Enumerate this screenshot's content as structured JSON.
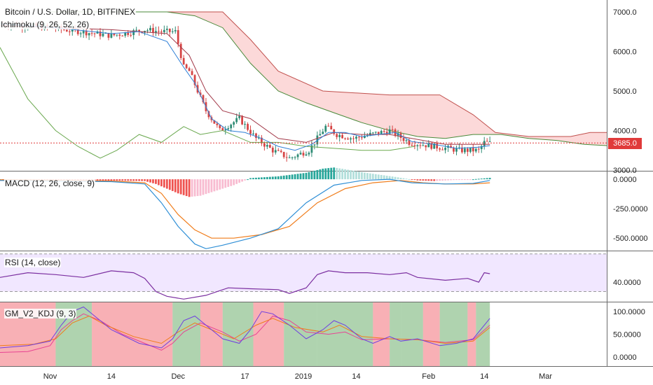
{
  "chart_data": [
    {
      "type": "candlestick",
      "title": "Bitcoin / U.S. Dollar, 1D, BITFINEX",
      "indicator": "Ichimoku (9, 26, 52, 26)",
      "ylim": [
        3000,
        7300
      ],
      "yticks": [
        "7000.0",
        "6000.0",
        "5000.0",
        "4000.0",
        "3000.0"
      ],
      "last_price": "3685.0",
      "price_segments": [
        {
          "from": 0,
          "to": 6700
        },
        {
          "from": 18,
          "to": 6600
        },
        {
          "from": 40,
          "to": 6400
        },
        {
          "from": 52,
          "to": 6550
        },
        {
          "from": 58,
          "to": 6500
        },
        {
          "from": 63,
          "to": 6500
        },
        {
          "from": 66,
          "to": 5600
        },
        {
          "from": 68,
          "to": 5500
        },
        {
          "from": 74,
          "to": 4500
        },
        {
          "from": 79,
          "to": 4000
        },
        {
          "from": 86,
          "to": 4300
        },
        {
          "from": 92,
          "to": 3800
        },
        {
          "from": 98,
          "to": 3500
        },
        {
          "from": 104,
          "to": 3300
        },
        {
          "from": 111,
          "to": 3500
        },
        {
          "from": 117,
          "to": 4100
        },
        {
          "from": 121,
          "to": 3900
        },
        {
          "from": 127,
          "to": 3800
        },
        {
          "from": 133,
          "to": 3900
        },
        {
          "from": 140,
          "to": 4000
        },
        {
          "from": 147,
          "to": 3700
        },
        {
          "from": 156,
          "to": 3600
        },
        {
          "from": 165,
          "to": 3500
        },
        {
          "from": 172,
          "to": 3500
        },
        {
          "from": 174,
          "to": 3700
        },
        {
          "from": 176,
          "to": 3685
        }
      ],
      "tenkan": [
        [
          0,
          6700
        ],
        [
          20,
          6600
        ],
        [
          40,
          6450
        ],
        [
          50,
          6500
        ],
        [
          60,
          6250
        ],
        [
          66,
          5600
        ],
        [
          70,
          5200
        ],
        [
          76,
          4300
        ],
        [
          82,
          4000
        ],
        [
          88,
          3950
        ],
        [
          94,
          3800
        ],
        [
          100,
          3600
        ],
        [
          106,
          3500
        ],
        [
          112,
          3650
        ],
        [
          118,
          3950
        ],
        [
          124,
          3950
        ],
        [
          130,
          3850
        ],
        [
          136,
          3900
        ],
        [
          142,
          3950
        ],
        [
          148,
          3720
        ],
        [
          156,
          3650
        ],
        [
          164,
          3550
        ],
        [
          172,
          3580
        ],
        [
          176,
          3620
        ]
      ],
      "kijun": [
        [
          0,
          6650
        ],
        [
          40,
          6550
        ],
        [
          60,
          6450
        ],
        [
          68,
          5900
        ],
        [
          74,
          5000
        ],
        [
          80,
          4500
        ],
        [
          90,
          4300
        ],
        [
          100,
          3800
        ],
        [
          110,
          3700
        ],
        [
          120,
          3950
        ],
        [
          130,
          3900
        ],
        [
          140,
          3900
        ],
        [
          148,
          3800
        ],
        [
          160,
          3650
        ],
        [
          176,
          3650
        ]
      ],
      "chikou": [
        [
          0,
          6100
        ],
        [
          10,
          4800
        ],
        [
          20,
          4000
        ],
        [
          28,
          3600
        ],
        [
          36,
          3300
        ],
        [
          42,
          3500
        ],
        [
          50,
          3900
        ],
        [
          58,
          3700
        ],
        [
          66,
          4100
        ],
        [
          72,
          3900
        ],
        [
          80,
          4000
        ],
        [
          90,
          3700
        ],
        [
          100,
          3700
        ],
        [
          110,
          3600
        ],
        [
          120,
          3550
        ],
        [
          130,
          3500
        ],
        [
          140,
          3500
        ],
        [
          149,
          3600
        ]
      ],
      "span_a": [
        [
          18,
          7000
        ],
        [
          34,
          7000
        ],
        [
          40,
          7000
        ],
        [
          52,
          7000
        ],
        [
          60,
          7000
        ],
        [
          70,
          6900
        ],
        [
          80,
          6600
        ],
        [
          90,
          5700
        ],
        [
          100,
          5000
        ],
        [
          110,
          4700
        ],
        [
          120,
          4450
        ],
        [
          130,
          4200
        ],
        [
          140,
          4000
        ],
        [
          150,
          3850
        ],
        [
          160,
          3800
        ],
        [
          170,
          3900
        ],
        [
          180,
          3900
        ],
        [
          190,
          3800
        ],
        [
          200,
          3750
        ],
        [
          210,
          3650
        ],
        [
          218,
          3620
        ]
      ],
      "span_b": [
        [
          18,
          7000
        ],
        [
          60,
          7000
        ],
        [
          80,
          7000
        ],
        [
          90,
          6300
        ],
        [
          100,
          5500
        ],
        [
          116,
          5000
        ],
        [
          140,
          4900
        ],
        [
          158,
          4900
        ],
        [
          170,
          4400
        ],
        [
          178,
          3950
        ],
        [
          190,
          3850
        ],
        [
          205,
          3850
        ],
        [
          212,
          3950
        ],
        [
          218,
          3950
        ]
      ],
      "x_ticks": [
        "Nov",
        "14",
        "Dec",
        "17",
        "2019",
        "14",
        "Feb",
        "14",
        "Mar"
      ]
    },
    {
      "type": "bar",
      "title": "MACD (12, 26, close, 9)",
      "ylim": [
        -600,
        60
      ],
      "yticks": [
        "0.0000",
        "-250.0000",
        "-500.0000"
      ],
      "histogram": [
        [
          0,
          0
        ],
        [
          15,
          -5
        ],
        [
          35,
          -10
        ],
        [
          52,
          -15
        ],
        [
          56,
          -40
        ],
        [
          60,
          -80
        ],
        [
          64,
          -120
        ],
        [
          68,
          -150
        ],
        [
          72,
          -140
        ],
        [
          76,
          -110
        ],
        [
          80,
          -80
        ],
        [
          84,
          -50
        ],
        [
          90,
          10
        ],
        [
          100,
          25
        ],
        [
          110,
          55
        ],
        [
          116,
          90
        ],
        [
          120,
          100
        ],
        [
          124,
          85
        ],
        [
          130,
          60
        ],
        [
          136,
          40
        ],
        [
          142,
          20
        ],
        [
          146,
          5
        ],
        [
          150,
          -10
        ],
        [
          156,
          -15
        ],
        [
          164,
          -5
        ],
        [
          170,
          0
        ],
        [
          176,
          12
        ]
      ],
      "macd": [
        [
          0,
          -10
        ],
        [
          40,
          -20
        ],
        [
          52,
          -40
        ],
        [
          58,
          -200
        ],
        [
          64,
          -400
        ],
        [
          70,
          -550
        ],
        [
          74,
          -590
        ],
        [
          80,
          -560
        ],
        [
          90,
          -500
        ],
        [
          100,
          -420
        ],
        [
          110,
          -200
        ],
        [
          120,
          -50
        ],
        [
          130,
          -10
        ],
        [
          140,
          0
        ],
        [
          148,
          -30
        ],
        [
          160,
          -40
        ],
        [
          170,
          -35
        ],
        [
          176,
          -10
        ]
      ],
      "signal": [
        [
          0,
          -5
        ],
        [
          40,
          -15
        ],
        [
          52,
          -30
        ],
        [
          58,
          -120
        ],
        [
          64,
          -300
        ],
        [
          70,
          -430
        ],
        [
          76,
          -500
        ],
        [
          84,
          -500
        ],
        [
          94,
          -470
        ],
        [
          104,
          -400
        ],
        [
          114,
          -200
        ],
        [
          124,
          -80
        ],
        [
          134,
          -30
        ],
        [
          144,
          -10
        ],
        [
          152,
          -30
        ],
        [
          160,
          -40
        ],
        [
          170,
          -40
        ],
        [
          176,
          -30
        ]
      ]
    },
    {
      "type": "line",
      "title": "RSI (14, close)",
      "ylim": [
        20,
        72
      ],
      "yticks": [
        "40.0000"
      ],
      "values": [
        [
          0,
          45
        ],
        [
          10,
          50
        ],
        [
          20,
          48
        ],
        [
          30,
          45
        ],
        [
          40,
          52
        ],
        [
          48,
          50
        ],
        [
          52,
          44
        ],
        [
          56,
          30
        ],
        [
          60,
          25
        ],
        [
          66,
          22
        ],
        [
          74,
          26
        ],
        [
          82,
          34
        ],
        [
          90,
          33
        ],
        [
          100,
          32
        ],
        [
          104,
          28
        ],
        [
          110,
          34
        ],
        [
          114,
          48
        ],
        [
          118,
          52
        ],
        [
          124,
          50
        ],
        [
          132,
          50
        ],
        [
          140,
          48
        ],
        [
          146,
          50
        ],
        [
          150,
          45
        ],
        [
          160,
          42
        ],
        [
          168,
          44
        ],
        [
          172,
          40
        ],
        [
          174,
          50
        ],
        [
          176,
          49
        ]
      ]
    },
    {
      "type": "line",
      "title": "GM_V2_KDJ (9, 3)",
      "ylim": [
        -20,
        120
      ],
      "yticks": [
        "100.0000",
        "50.0000",
        "0.0000"
      ],
      "bands": [
        {
          "from": 0,
          "to": 20,
          "color": "red"
        },
        {
          "from": 20,
          "to": 33,
          "color": "green"
        },
        {
          "from": 33,
          "to": 62,
          "color": "red"
        },
        {
          "from": 62,
          "to": 72,
          "color": "green"
        },
        {
          "from": 72,
          "to": 80,
          "color": "red"
        },
        {
          "from": 80,
          "to": 91,
          "color": "green"
        },
        {
          "from": 91,
          "to": 102,
          "color": "red"
        },
        {
          "from": 102,
          "to": 114,
          "color": "green"
        },
        {
          "from": 114,
          "to": 134,
          "color": "green"
        },
        {
          "from": 134,
          "to": 140,
          "color": "red"
        },
        {
          "from": 140,
          "to": 144,
          "color": "green"
        },
        {
          "from": 144,
          "to": 152,
          "color": "green"
        },
        {
          "from": 152,
          "to": 158,
          "color": "red"
        },
        {
          "from": 158,
          "to": 168,
          "color": "green"
        },
        {
          "from": 168,
          "to": 171,
          "color": "red"
        },
        {
          "from": 171,
          "to": 176,
          "color": "green"
        }
      ],
      "k": [
        [
          0,
          20
        ],
        [
          10,
          25
        ],
        [
          18,
          35
        ],
        [
          22,
          70
        ],
        [
          26,
          100
        ],
        [
          30,
          110
        ],
        [
          34,
          90
        ],
        [
          40,
          60
        ],
        [
          50,
          30
        ],
        [
          58,
          20
        ],
        [
          62,
          40
        ],
        [
          66,
          80
        ],
        [
          70,
          90
        ],
        [
          74,
          70
        ],
        [
          80,
          40
        ],
        [
          86,
          30
        ],
        [
          90,
          60
        ],
        [
          94,
          100
        ],
        [
          98,
          95
        ],
        [
          104,
          70
        ],
        [
          110,
          40
        ],
        [
          116,
          60
        ],
        [
          120,
          80
        ],
        [
          124,
          70
        ],
        [
          130,
          40
        ],
        [
          134,
          30
        ],
        [
          140,
          45
        ],
        [
          144,
          35
        ],
        [
          150,
          40
        ],
        [
          158,
          25
        ],
        [
          164,
          30
        ],
        [
          170,
          40
        ],
        [
          176,
          85
        ]
      ],
      "d": [
        [
          0,
          25
        ],
        [
          12,
          28
        ],
        [
          20,
          40
        ],
        [
          26,
          75
        ],
        [
          32,
          90
        ],
        [
          38,
          70
        ],
        [
          48,
          45
        ],
        [
          58,
          30
        ],
        [
          64,
          55
        ],
        [
          70,
          75
        ],
        [
          76,
          60
        ],
        [
          84,
          40
        ],
        [
          92,
          70
        ],
        [
          98,
          85
        ],
        [
          106,
          65
        ],
        [
          116,
          55
        ],
        [
          122,
          70
        ],
        [
          130,
          45
        ],
        [
          140,
          40
        ],
        [
          150,
          38
        ],
        [
          160,
          30
        ],
        [
          170,
          35
        ],
        [
          176,
          65
        ]
      ],
      "j": [
        [
          0,
          10
        ],
        [
          10,
          12
        ],
        [
          18,
          25
        ],
        [
          22,
          60
        ],
        [
          26,
          80
        ],
        [
          30,
          95
        ],
        [
          36,
          80
        ],
        [
          44,
          50
        ],
        [
          52,
          30
        ],
        [
          58,
          15
        ],
        [
          62,
          30
        ],
        [
          66,
          55
        ],
        [
          72,
          75
        ],
        [
          80,
          55
        ],
        [
          86,
          35
        ],
        [
          92,
          50
        ],
        [
          98,
          90
        ],
        [
          104,
          80
        ],
        [
          110,
          55
        ],
        [
          118,
          50
        ],
        [
          124,
          55
        ],
        [
          130,
          38
        ],
        [
          140,
          40
        ],
        [
          150,
          38
        ],
        [
          160,
          32
        ],
        [
          170,
          38
        ],
        [
          176,
          70
        ]
      ]
    }
  ]
}
